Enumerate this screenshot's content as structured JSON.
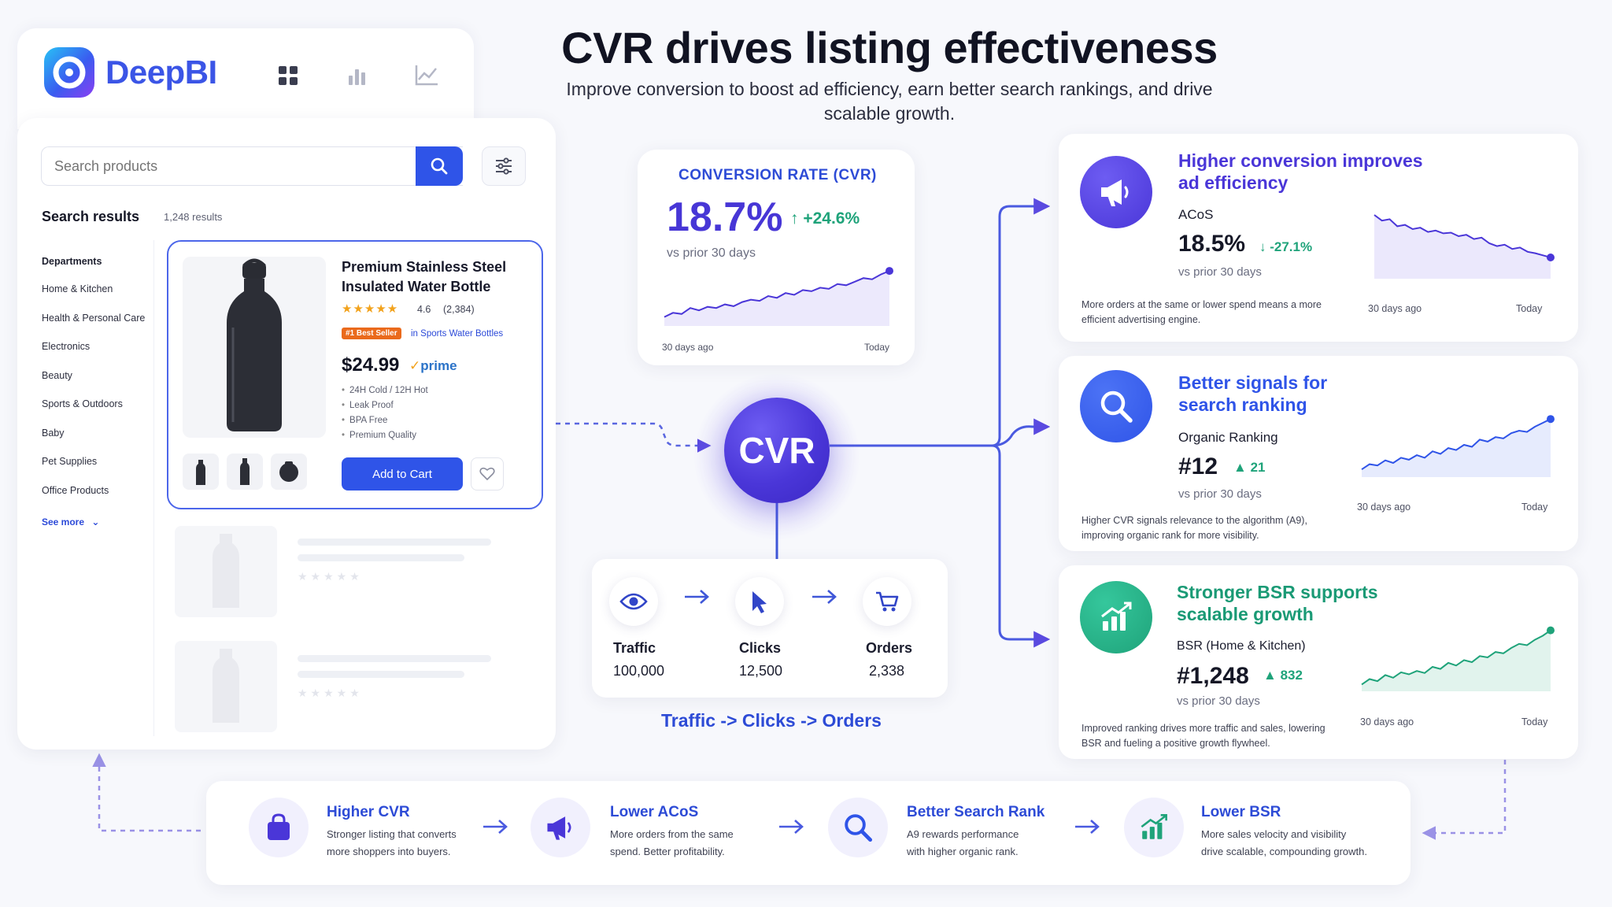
{
  "header": {
    "title": "CVR drives listing effectiveness",
    "subtitle": "Improve conversion to boost ad efficiency, earn better search rankings, and drive scalable growth."
  },
  "brand": {
    "name": "DeepBI"
  },
  "search": {
    "placeholder": "Search products",
    "results_heading": "Search results",
    "results_count": "1,248 results"
  },
  "departments": {
    "heading": "Departments",
    "items": [
      "Home & Kitchen",
      "Health & Personal Care",
      "Electronics",
      "Beauty",
      "Sports & Outdoors",
      "Baby",
      "Pet Supplies",
      "Office Products"
    ],
    "see_more": "See more"
  },
  "product": {
    "title": "Premium Stainless Steel Insulated Water Bottle",
    "stars": "★★★★★",
    "rating": "4.6",
    "reviews": "(2,384)",
    "badge": "#1 Best Seller",
    "category": "in Sports Water Bottles",
    "price": "$24.99",
    "prime": "prime",
    "features": [
      "24H Cold / 12H Hot",
      "Leak Proof",
      "BPA Free",
      "Premium Quality"
    ],
    "add_to_cart": "Add to Cart"
  },
  "cvr_card": {
    "label": "CONVERSION RATE (CVR)",
    "value": "18.7%",
    "delta": "+24.6%",
    "compare": "vs prior 30 days",
    "axis_start": "30 days ago",
    "axis_end": "Today",
    "trend": [
      0.15,
      0.22,
      0.2,
      0.3,
      0.26,
      0.32,
      0.3,
      0.36,
      0.33,
      0.4,
      0.44,
      0.42,
      0.5,
      0.47,
      0.55,
      0.52,
      0.6,
      0.58,
      0.64,
      0.62,
      0.7,
      0.68,
      0.74,
      0.8,
      0.78,
      0.86,
      0.92
    ]
  },
  "center": {
    "label": "CVR"
  },
  "funnel": {
    "steps": [
      {
        "label": "Traffic",
        "value": "100,000"
      },
      {
        "label": "Clicks",
        "value": "12,500"
      },
      {
        "label": "Orders",
        "value": "2,338"
      }
    ],
    "caption": "Traffic -> Clicks -> Orders"
  },
  "cards": [
    {
      "title_1": "Higher conversion improves",
      "title_2": "ad efficiency",
      "metric_label": "ACoS",
      "metric": "18.5%",
      "delta": "-27.1%",
      "compare": "vs prior 30 days",
      "desc_1": "More orders at the same or lower spend means a more",
      "desc_2": "efficient advertising engine.",
      "axis_start": "30 days ago",
      "axis_end": "Today",
      "color": "#4a36d8",
      "trend": [
        0.9,
        0.82,
        0.84,
        0.74,
        0.76,
        0.7,
        0.72,
        0.66,
        0.68,
        0.64,
        0.65,
        0.6,
        0.62,
        0.56,
        0.58,
        0.5,
        0.46,
        0.48,
        0.42,
        0.44,
        0.38,
        0.36,
        0.33,
        0.3
      ]
    },
    {
      "title_1": "Better signals for",
      "title_2": "search ranking",
      "metric_label": "Organic Ranking",
      "metric": "#12",
      "delta": "21",
      "compare": "vs prior 30 days",
      "desc_1": "Higher CVR signals relevance to the algorithm (A9),",
      "desc_2": "improving organic rank for more visibility.",
      "axis_start": "30 days ago",
      "axis_end": "Today",
      "color": "#2f54e8",
      "trend": [
        0.12,
        0.2,
        0.18,
        0.26,
        0.22,
        0.3,
        0.27,
        0.34,
        0.3,
        0.4,
        0.36,
        0.45,
        0.42,
        0.5,
        0.47,
        0.58,
        0.55,
        0.62,
        0.6,
        0.68,
        0.72,
        0.7,
        0.78,
        0.84,
        0.9
      ]
    },
    {
      "title_1": "Stronger BSR supports",
      "title_2": "scalable growth",
      "metric_label": "BSR (Home & Kitchen)",
      "metric": "#1,248",
      "delta": "832",
      "compare": "vs prior 30 days",
      "desc_1": "Improved ranking drives more traffic and sales, lowering",
      "desc_2": "BSR and fueling a positive growth flywheel.",
      "axis_start": "30 days ago",
      "axis_end": "Today",
      "color": "#1fa37a",
      "trend": [
        0.1,
        0.18,
        0.15,
        0.24,
        0.2,
        0.28,
        0.25,
        0.3,
        0.27,
        0.36,
        0.33,
        0.42,
        0.38,
        0.46,
        0.43,
        0.52,
        0.5,
        0.58,
        0.56,
        0.64,
        0.7,
        0.68,
        0.76,
        0.82,
        0.9
      ]
    }
  ],
  "flywheel": [
    {
      "title": "Higher CVR",
      "desc_1": "Stronger listing that converts",
      "desc_2": "more shoppers into buyers."
    },
    {
      "title": "Lower ACoS",
      "desc_1": "More orders from the same",
      "desc_2": "spend. Better profitability."
    },
    {
      "title": "Better Search Rank",
      "desc_1": "A9 rewards performance",
      "desc_2": "with higher organic rank."
    },
    {
      "title": "Lower BSR",
      "desc_1": "More sales velocity and visibility",
      "desc_2": "drive scalable, compounding growth."
    }
  ]
}
